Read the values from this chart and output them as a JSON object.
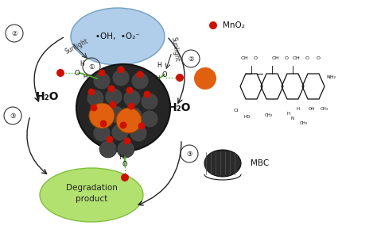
{
  "bg_color": "#ffffff",
  "oh_text": "•OH,  •O₂⁻",
  "h2o_left": "H₂O",
  "h2o_right": "H₂O",
  "degrad_text": "Degradation\nproduct",
  "mno2_label": "MnO₂",
  "mbc_label": "MBC",
  "sunlight1": "Sunlight",
  "sunlight2": "Sunlight",
  "orange_color": "#e06010",
  "red_dot_color": "#cc1100",
  "green_line_color": "#44aa22",
  "arrow_color": "#222222",
  "blue_fc": "#a8c8e8",
  "blue_ec": "#6699bb",
  "green_fc": "#aade60",
  "green_ec": "#77bb33",
  "dark_fc": "#252525",
  "dark_ec": "#111111",
  "tunnel_fc": "#444444",
  "tunnel_ec": "#222222"
}
